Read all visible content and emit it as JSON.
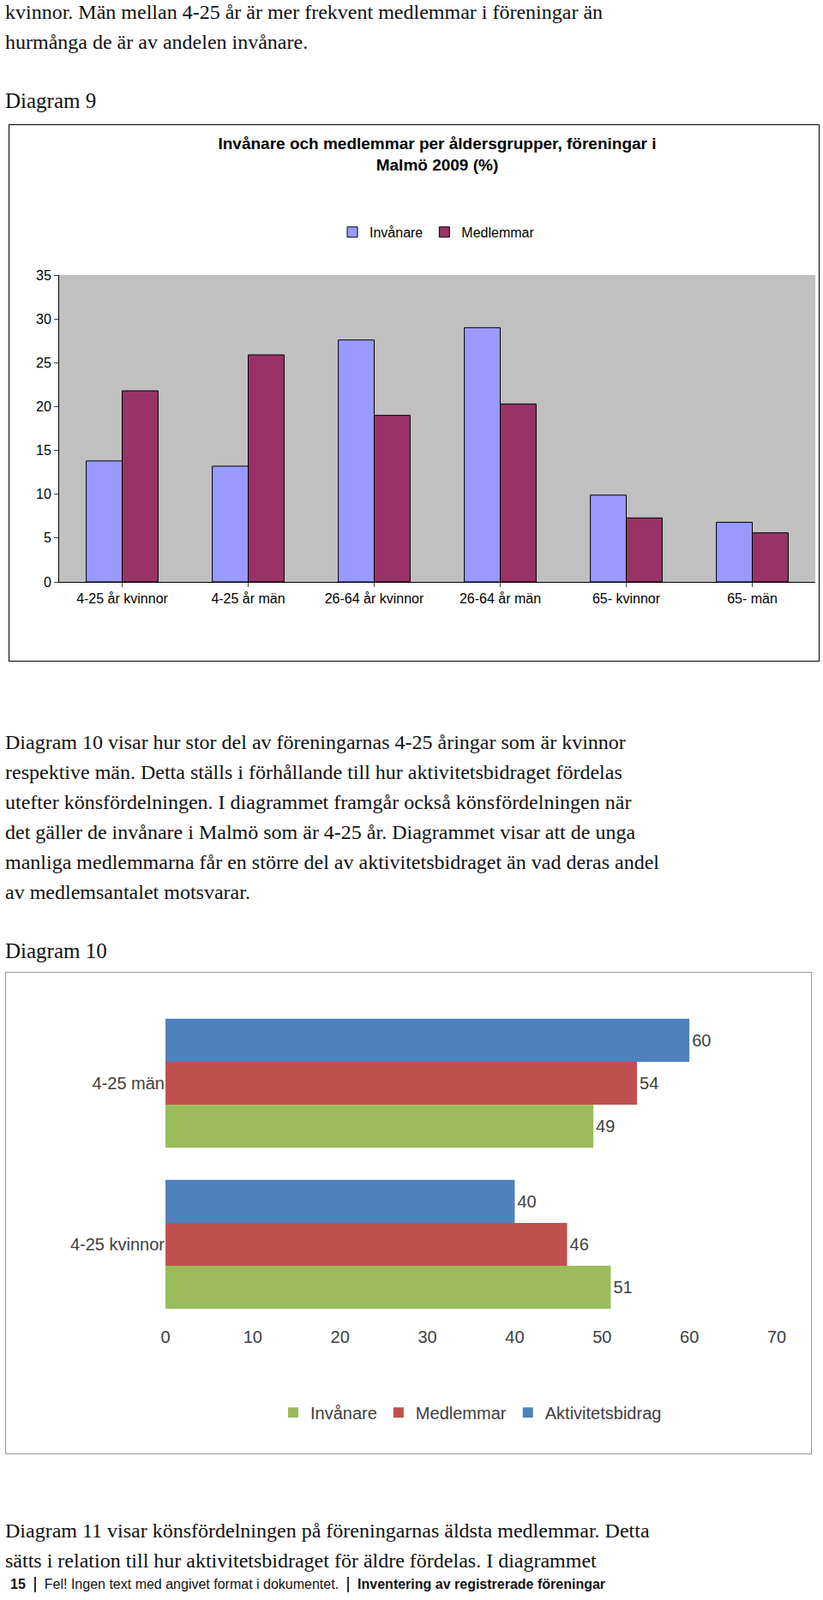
{
  "text_before": [
    "kvinnor. Män mellan 4-25 år är mer frekvent medlemmar i föreningar än",
    "hurmånga de är av andelen invånare."
  ],
  "captions": [
    "Diagram 9",
    "Diagram 10"
  ],
  "text_middle": [
    "Diagram 10 visar hur stor del av föreningarnas 4-25 åringar som är kvinnor",
    "respektive män. Detta ställs i förhållande till hur aktivitetsbidraget fördelas",
    "utefter könsfördelningen. I diagrammet framgår också könsfördelningen när",
    "det gäller de invånare i Malmö som är 4-25 år. Diagrammet visar att de unga",
    "manliga medlemmarna får en större del av aktivitetsbidraget än vad deras andel",
    "av medlemsantalet motsvarar."
  ],
  "text_after": [
    "Diagram 11 visar könsfördelningen på föreningarnas äldsta medlemmar. Detta",
    "sätts i relation till hur aktivitetsbidraget för äldre fördelas. I diagrammet"
  ],
  "footer": {
    "page": "15",
    "left": "Fel! Ingen text med angivet format i dokumentet.",
    "right": "Inventering av registrerade föreningar"
  },
  "chart_data": [
    {
      "type": "bar",
      "title": "Invånare och medlemmar per åldersgrupper, föreningar i\nMalmö 2009 (%)",
      "categories": [
        "4-25 år kvinnor",
        "4-25 år män",
        "26-64 år kvinnor",
        "26-64 år män",
        "65- kvinnor",
        "65- män"
      ],
      "series": [
        {
          "name": "Invånare",
          "color": "#9999ff",
          "values": [
            13.8,
            13.2,
            27.6,
            29.0,
            9.9,
            6.8
          ]
        },
        {
          "name": "Medlemmar",
          "color": "#993366",
          "values": [
            21.8,
            25.9,
            19.0,
            20.3,
            7.3,
            5.6
          ]
        }
      ],
      "ylim": [
        0,
        35
      ],
      "yticks": [
        0,
        5,
        10,
        15,
        20,
        25,
        30,
        35
      ],
      "grid": false,
      "legend": "top"
    },
    {
      "type": "bar",
      "orientation": "horizontal",
      "categories": [
        "4-25 män",
        "4-25 kvinnor"
      ],
      "series": [
        {
          "name": "Invånare",
          "color": "#9bbb59",
          "values": [
            49,
            51
          ]
        },
        {
          "name": "Medlemmar",
          "color": "#c0504d",
          "values": [
            54,
            46
          ]
        },
        {
          "name": "Aktivitetsbidrag",
          "color": "#4f81bd",
          "values": [
            60,
            40
          ]
        }
      ],
      "xlim": [
        0,
        70
      ],
      "xticks": [
        0,
        10,
        20,
        30,
        40,
        50,
        60,
        70
      ],
      "grid": false,
      "data_labels": true,
      "legend": "bottom"
    }
  ]
}
